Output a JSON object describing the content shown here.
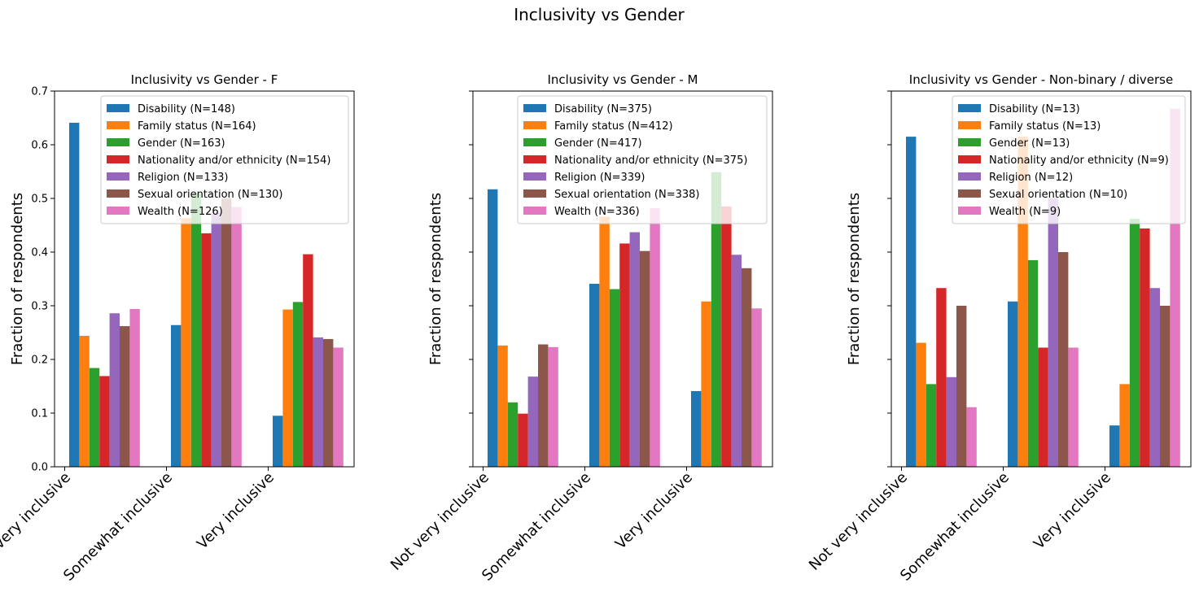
{
  "figure": {
    "suptitle": "Inclusivity vs Gender"
  },
  "chart_data": [
    {
      "type": "bar",
      "title": "Inclusivity vs Gender - F",
      "ylabel": "Fraction of respondents",
      "xlabel": "",
      "ylim": [
        0,
        0.7
      ],
      "yticks": [
        "0.0",
        "0.1",
        "0.2",
        "0.3",
        "0.4",
        "0.5",
        "0.6",
        "0.7"
      ],
      "show_ytick_labels": true,
      "categories": [
        "Not very inclusive",
        "Somewhat inclusive",
        "Very inclusive"
      ],
      "legend_position": "top-right",
      "series": [
        {
          "name": "Disability (N=148)",
          "values": [
            0.641,
            0.264,
            0.095
          ]
        },
        {
          "name": "Family status (N=164)",
          "values": [
            0.244,
            0.463,
            0.293
          ]
        },
        {
          "name": "Gender (N=163)",
          "values": [
            0.184,
            0.509,
            0.307
          ]
        },
        {
          "name": "Nationality and/or ethnicity (N=154)",
          "values": [
            0.169,
            0.435,
            0.396
          ]
        },
        {
          "name": "Religion (N=133)",
          "values": [
            0.286,
            0.474,
            0.241
          ]
        },
        {
          "name": "Sexual orientation (N=130)",
          "values": [
            0.262,
            0.5,
            0.238
          ]
        },
        {
          "name": "Wealth (N=126)",
          "values": [
            0.294,
            0.484,
            0.222
          ]
        }
      ]
    },
    {
      "type": "bar",
      "title": "Inclusivity vs Gender - M",
      "ylabel": "Fraction of respondents",
      "xlabel": "",
      "ylim": [
        0,
        0.7
      ],
      "yticks": [
        "0.0",
        "0.1",
        "0.2",
        "0.3",
        "0.4",
        "0.5",
        "0.6",
        "0.7"
      ],
      "show_ytick_labels": false,
      "categories": [
        "Not very inclusive",
        "Somewhat inclusive",
        "Very inclusive"
      ],
      "legend_position": "top-right",
      "series": [
        {
          "name": "Disability (N=375)",
          "values": [
            0.517,
            0.341,
            0.141
          ]
        },
        {
          "name": "Family status (N=412)",
          "values": [
            0.226,
            0.466,
            0.308
          ]
        },
        {
          "name": "Gender (N=417)",
          "values": [
            0.12,
            0.331,
            0.549
          ]
        },
        {
          "name": "Nationality and/or ethnicity (N=375)",
          "values": [
            0.099,
            0.416,
            0.485
          ]
        },
        {
          "name": "Religion (N=339)",
          "values": [
            0.168,
            0.437,
            0.395
          ]
        },
        {
          "name": "Sexual orientation (N=338)",
          "values": [
            0.228,
            0.402,
            0.37
          ]
        },
        {
          "name": "Wealth (N=336)",
          "values": [
            0.223,
            0.482,
            0.295
          ]
        }
      ]
    },
    {
      "type": "bar",
      "title": "Inclusivity vs Gender - Non-binary / diverse",
      "ylabel": "Fraction of respondents",
      "xlabel": "",
      "ylim": [
        0,
        0.7
      ],
      "yticks": [
        "0.0",
        "0.1",
        "0.2",
        "0.3",
        "0.4",
        "0.5",
        "0.6",
        "0.7"
      ],
      "show_ytick_labels": false,
      "categories": [
        "Not very inclusive",
        "Somewhat inclusive",
        "Very inclusive"
      ],
      "legend_position": "top-right",
      "series": [
        {
          "name": "Disability (N=13)",
          "values": [
            0.615,
            0.308,
            0.077
          ]
        },
        {
          "name": "Family status (N=13)",
          "values": [
            0.231,
            0.615,
            0.154
          ]
        },
        {
          "name": "Gender (N=13)",
          "values": [
            0.154,
            0.385,
            0.462
          ]
        },
        {
          "name": "Nationality and/or ethnicity (N=9)",
          "values": [
            0.333,
            0.222,
            0.444
          ]
        },
        {
          "name": "Religion (N=12)",
          "values": [
            0.167,
            0.5,
            0.333
          ]
        },
        {
          "name": "Sexual orientation (N=10)",
          "values": [
            0.3,
            0.4,
            0.3
          ]
        },
        {
          "name": "Wealth (N=9)",
          "values": [
            0.111,
            0.222,
            0.667
          ]
        }
      ]
    }
  ],
  "colors": [
    "#1f77b4",
    "#ff7f0e",
    "#2ca02c",
    "#d62728",
    "#9467bd",
    "#8c564b",
    "#e377c2"
  ]
}
